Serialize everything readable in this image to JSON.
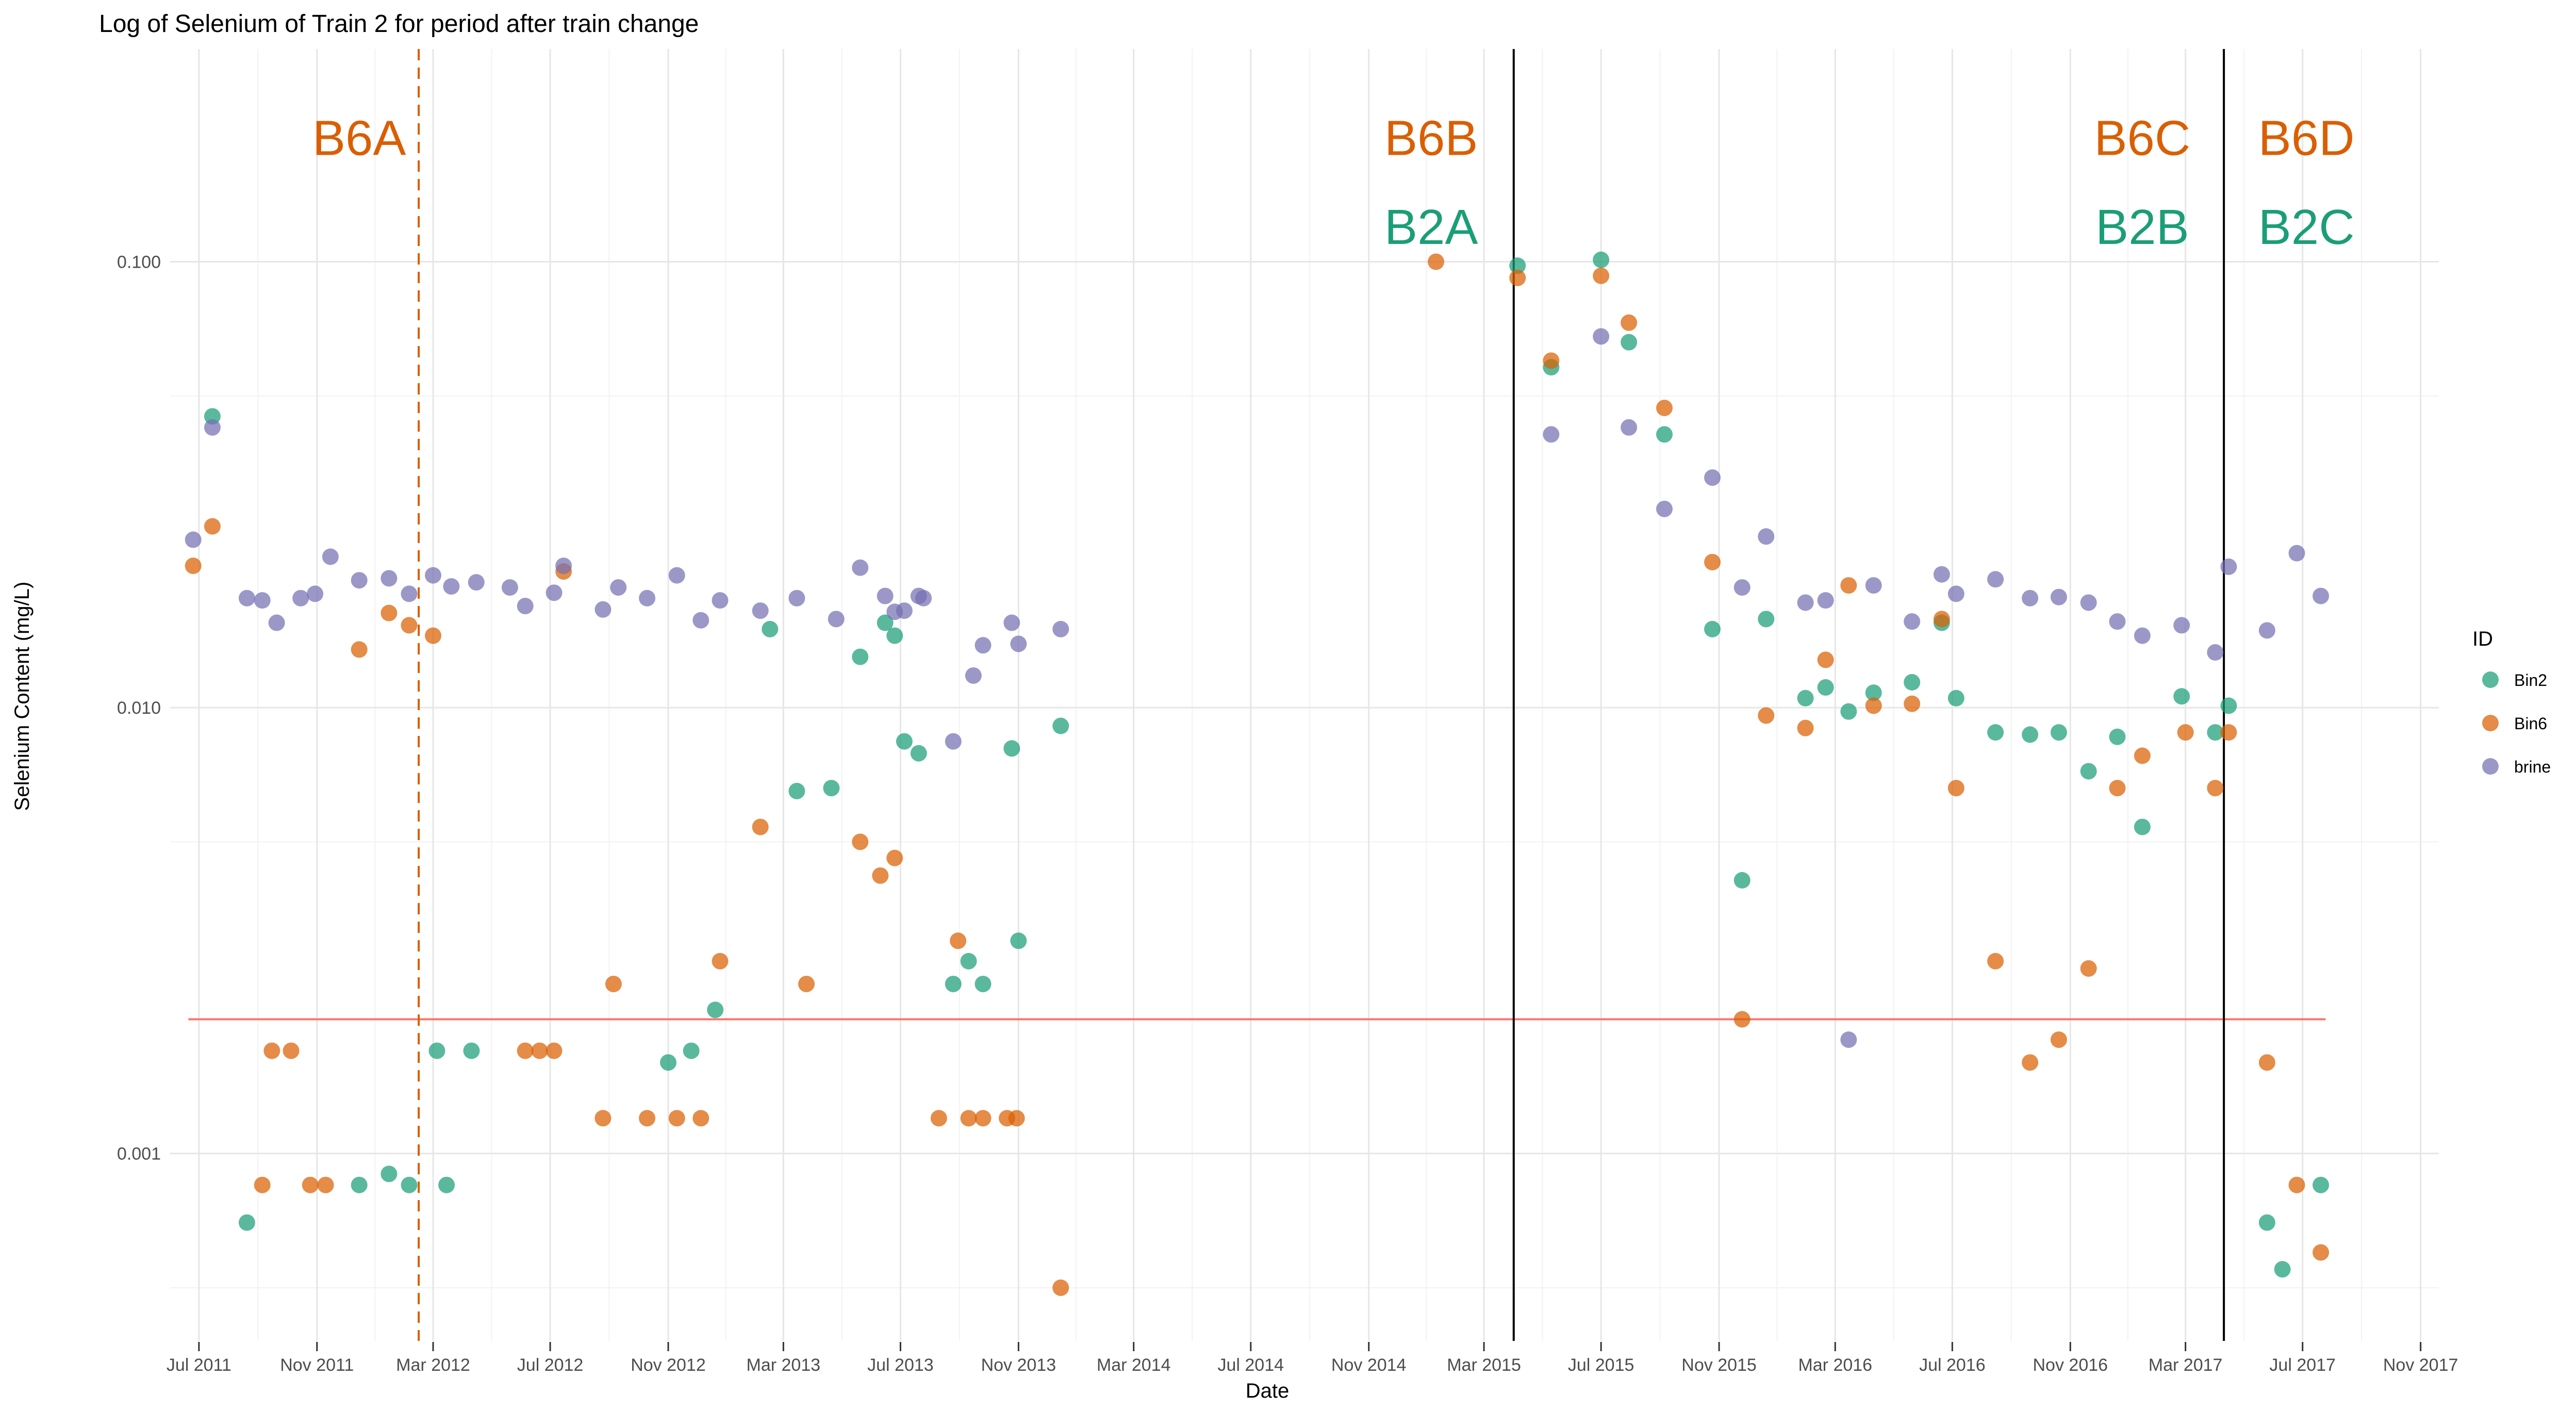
{
  "chart_data": {
    "type": "scatter",
    "title": "Log of Selenium of Train 2 for period after train change",
    "xlabel": "Date",
    "ylabel": "Selenium Content (mg/L)",
    "x_scale": "date",
    "y_scale": "log10",
    "xlim": [
      "2011-06-01",
      "2017-11-20"
    ],
    "ylim": [
      0.00038,
      0.3
    ],
    "x_ticks": [
      {
        "date": "2011-07-01",
        "label": "Jul 2011"
      },
      {
        "date": "2011-11-01",
        "label": "Nov 2011"
      },
      {
        "date": "2012-03-01",
        "label": "Mar 2012"
      },
      {
        "date": "2012-07-01",
        "label": "Jul 2012"
      },
      {
        "date": "2012-11-01",
        "label": "Nov 2012"
      },
      {
        "date": "2013-03-01",
        "label": "Mar 2013"
      },
      {
        "date": "2013-07-01",
        "label": "Jul 2013"
      },
      {
        "date": "2013-11-01",
        "label": "Nov 2013"
      },
      {
        "date": "2014-03-01",
        "label": "Mar 2014"
      },
      {
        "date": "2014-07-01",
        "label": "Jul 2014"
      },
      {
        "date": "2014-11-01",
        "label": "Nov 2014"
      },
      {
        "date": "2015-03-01",
        "label": "Mar 2015"
      },
      {
        "date": "2015-07-01",
        "label": "Jul 2015"
      },
      {
        "date": "2015-11-01",
        "label": "Nov 2015"
      },
      {
        "date": "2016-03-01",
        "label": "Mar 2016"
      },
      {
        "date": "2016-07-01",
        "label": "Jul 2016"
      },
      {
        "date": "2016-11-01",
        "label": "Nov 2016"
      },
      {
        "date": "2017-03-01",
        "label": "Mar 2017"
      },
      {
        "date": "2017-07-01",
        "label": "Jul 2017"
      },
      {
        "date": "2017-11-01",
        "label": "Nov 2017"
      }
    ],
    "y_ticks": [
      {
        "value": 0.001,
        "label": "0.001"
      },
      {
        "value": 0.01,
        "label": "0.010"
      },
      {
        "value": 0.1,
        "label": "0.100"
      }
    ],
    "grid": true,
    "legend": {
      "title": "ID",
      "position": "right"
    },
    "reference_lines": [
      {
        "orientation": "horizontal",
        "value": 0.002,
        "from": "2011-06-20",
        "to": "2017-07-25",
        "color": "#F8766D",
        "style": "solid"
      },
      {
        "orientation": "vertical",
        "date": "2012-02-15",
        "color": "#D95F02",
        "style": "dashed"
      },
      {
        "orientation": "vertical",
        "date": "2015-04-01",
        "color": "#000000",
        "style": "solid"
      },
      {
        "orientation": "vertical",
        "date": "2017-04-10",
        "color": "#000000",
        "style": "solid"
      }
    ],
    "annotations": [
      {
        "text": "B6A",
        "date": "2011-12-15",
        "value": 0.19,
        "color": "#D95F02"
      },
      {
        "text": "B6B",
        "date": "2015-01-05",
        "value": 0.19,
        "color": "#D95F02"
      },
      {
        "text": "B2A",
        "date": "2015-01-05",
        "value": 0.12,
        "color": "#1B9E77"
      },
      {
        "text": "B6C",
        "date": "2017-01-15",
        "value": 0.19,
        "color": "#D95F02"
      },
      {
        "text": "B2B",
        "date": "2017-01-15",
        "value": 0.12,
        "color": "#1B9E77"
      },
      {
        "text": "B6D",
        "date": "2017-07-05",
        "value": 0.19,
        "color": "#D95F02"
      },
      {
        "text": "B2C",
        "date": "2017-07-05",
        "value": 0.12,
        "color": "#1B9E77"
      }
    ],
    "series": [
      {
        "name": "Bin2",
        "color": "#1B9E77",
        "points": [
          {
            "x": "2011-07-15",
            "y": 0.045
          },
          {
            "x": "2011-08-20",
            "y": 0.0007
          },
          {
            "x": "2011-12-15",
            "y": 0.00085
          },
          {
            "x": "2012-01-15",
            "y": 0.0009
          },
          {
            "x": "2012-02-05",
            "y": 0.00085
          },
          {
            "x": "2012-03-05",
            "y": 0.0017
          },
          {
            "x": "2012-03-15",
            "y": 0.00085
          },
          {
            "x": "2012-04-10",
            "y": 0.0017
          },
          {
            "x": "2012-11-01",
            "y": 0.0016
          },
          {
            "x": "2012-11-25",
            "y": 0.0017
          },
          {
            "x": "2012-12-20",
            "y": 0.0021
          },
          {
            "x": "2013-02-15",
            "y": 0.015
          },
          {
            "x": "2013-03-15",
            "y": 0.0065
          },
          {
            "x": "2013-04-20",
            "y": 0.0066
          },
          {
            "x": "2013-05-20",
            "y": 0.013
          },
          {
            "x": "2013-06-15",
            "y": 0.0155
          },
          {
            "x": "2013-06-25",
            "y": 0.0145
          },
          {
            "x": "2013-07-05",
            "y": 0.0084
          },
          {
            "x": "2013-07-20",
            "y": 0.0079
          },
          {
            "x": "2013-08-25",
            "y": 0.0024
          },
          {
            "x": "2013-09-10",
            "y": 0.0027
          },
          {
            "x": "2013-09-25",
            "y": 0.0024
          },
          {
            "x": "2013-10-25",
            "y": 0.0081
          },
          {
            "x": "2013-11-01",
            "y": 0.003
          },
          {
            "x": "2013-12-15",
            "y": 0.0091
          },
          {
            "x": "2015-04-05",
            "y": 0.098
          },
          {
            "x": "2015-05-10",
            "y": 0.058
          },
          {
            "x": "2015-07-01",
            "y": 0.101
          },
          {
            "x": "2015-07-30",
            "y": 0.066
          },
          {
            "x": "2015-09-05",
            "y": 0.041
          },
          {
            "x": "2015-10-25",
            "y": 0.015
          },
          {
            "x": "2015-11-25",
            "y": 0.0041
          },
          {
            "x": "2015-12-20",
            "y": 0.0158
          },
          {
            "x": "2016-01-30",
            "y": 0.0105
          },
          {
            "x": "2016-02-20",
            "y": 0.0111
          },
          {
            "x": "2016-03-15",
            "y": 0.0098
          },
          {
            "x": "2016-04-10",
            "y": 0.0108
          },
          {
            "x": "2016-05-20",
            "y": 0.0114
          },
          {
            "x": "2016-06-20",
            "y": 0.0155
          },
          {
            "x": "2016-07-05",
            "y": 0.0105
          },
          {
            "x": "2016-08-15",
            "y": 0.0088
          },
          {
            "x": "2016-09-20",
            "y": 0.0087
          },
          {
            "x": "2016-10-20",
            "y": 0.0088
          },
          {
            "x": "2016-11-20",
            "y": 0.0072
          },
          {
            "x": "2016-12-20",
            "y": 0.0086
          },
          {
            "x": "2017-01-15",
            "y": 0.0054
          },
          {
            "x": "2017-02-25",
            "y": 0.0106
          },
          {
            "x": "2017-04-01",
            "y": 0.0088
          },
          {
            "x": "2017-04-15",
            "y": 0.0101
          },
          {
            "x": "2017-05-25",
            "y": 0.0007
          },
          {
            "x": "2017-06-10",
            "y": 0.00055
          },
          {
            "x": "2017-07-20",
            "y": 0.00085
          }
        ]
      },
      {
        "name": "Bin6",
        "color": "#D95F02",
        "points": [
          {
            "x": "2011-06-25",
            "y": 0.0208
          },
          {
            "x": "2011-07-15",
            "y": 0.0255
          },
          {
            "x": "2011-09-05",
            "y": 0.00085
          },
          {
            "x": "2011-09-15",
            "y": 0.0017
          },
          {
            "x": "2011-10-05",
            "y": 0.0017
          },
          {
            "x": "2011-10-25",
            "y": 0.00085
          },
          {
            "x": "2011-11-10",
            "y": 0.00085
          },
          {
            "x": "2011-12-15",
            "y": 0.0135
          },
          {
            "x": "2012-01-15",
            "y": 0.0163
          },
          {
            "x": "2012-02-05",
            "y": 0.0153
          },
          {
            "x": "2012-03-01",
            "y": 0.0145
          },
          {
            "x": "2012-06-05",
            "y": 0.0017
          },
          {
            "x": "2012-06-20",
            "y": 0.0017
          },
          {
            "x": "2012-07-05",
            "y": 0.0017
          },
          {
            "x": "2012-07-15",
            "y": 0.0202
          },
          {
            "x": "2012-08-25",
            "y": 0.0012
          },
          {
            "x": "2012-09-05",
            "y": 0.0024
          },
          {
            "x": "2012-10-10",
            "y": 0.0012
          },
          {
            "x": "2012-11-10",
            "y": 0.0012
          },
          {
            "x": "2012-12-05",
            "y": 0.0012
          },
          {
            "x": "2012-12-25",
            "y": 0.0027
          },
          {
            "x": "2013-02-05",
            "y": 0.0054
          },
          {
            "x": "2013-03-25",
            "y": 0.0024
          },
          {
            "x": "2013-05-20",
            "y": 0.005
          },
          {
            "x": "2013-06-10",
            "y": 0.0042
          },
          {
            "x": "2013-06-25",
            "y": 0.0046
          },
          {
            "x": "2013-08-10",
            "y": 0.0012
          },
          {
            "x": "2013-08-30",
            "y": 0.003
          },
          {
            "x": "2013-09-10",
            "y": 0.0012
          },
          {
            "x": "2013-09-25",
            "y": 0.0012
          },
          {
            "x": "2013-10-20",
            "y": 0.0012
          },
          {
            "x": "2013-10-30",
            "y": 0.0012
          },
          {
            "x": "2013-12-15",
            "y": 0.0005
          },
          {
            "x": "2015-01-10",
            "y": 0.1
          },
          {
            "x": "2015-04-05",
            "y": 0.092
          },
          {
            "x": "2015-05-10",
            "y": 0.06
          },
          {
            "x": "2015-07-01",
            "y": 0.093
          },
          {
            "x": "2015-07-30",
            "y": 0.073
          },
          {
            "x": "2015-09-05",
            "y": 0.047
          },
          {
            "x": "2015-10-25",
            "y": 0.0212
          },
          {
            "x": "2015-11-25",
            "y": 0.002
          },
          {
            "x": "2015-12-20",
            "y": 0.0096
          },
          {
            "x": "2016-01-30",
            "y": 0.009
          },
          {
            "x": "2016-02-20",
            "y": 0.0128
          },
          {
            "x": "2016-03-15",
            "y": 0.0188
          },
          {
            "x": "2016-04-10",
            "y": 0.0101
          },
          {
            "x": "2016-05-20",
            "y": 0.0102
          },
          {
            "x": "2016-06-20",
            "y": 0.0158
          },
          {
            "x": "2016-07-05",
            "y": 0.0066
          },
          {
            "x": "2016-08-15",
            "y": 0.0027
          },
          {
            "x": "2016-09-20",
            "y": 0.0016
          },
          {
            "x": "2016-10-20",
            "y": 0.0018
          },
          {
            "x": "2016-11-20",
            "y": 0.0026
          },
          {
            "x": "2016-12-20",
            "y": 0.0066
          },
          {
            "x": "2017-01-15",
            "y": 0.0078
          },
          {
            "x": "2017-03-01",
            "y": 0.0088
          },
          {
            "x": "2017-04-01",
            "y": 0.0066
          },
          {
            "x": "2017-04-15",
            "y": 0.0088
          },
          {
            "x": "2017-05-25",
            "y": 0.0016
          },
          {
            "x": "2017-06-25",
            "y": 0.00085
          },
          {
            "x": "2017-07-20",
            "y": 0.0006
          }
        ]
      },
      {
        "name": "brine",
        "color": "#7570B3",
        "points": [
          {
            "x": "2011-06-25",
            "y": 0.0238
          },
          {
            "x": "2011-07-15",
            "y": 0.0425
          },
          {
            "x": "2011-08-20",
            "y": 0.0176
          },
          {
            "x": "2011-09-05",
            "y": 0.0174
          },
          {
            "x": "2011-09-20",
            "y": 0.0155
          },
          {
            "x": "2011-10-15",
            "y": 0.0176
          },
          {
            "x": "2011-10-30",
            "y": 0.018
          },
          {
            "x": "2011-11-15",
            "y": 0.0218
          },
          {
            "x": "2011-12-15",
            "y": 0.0193
          },
          {
            "x": "2012-01-15",
            "y": 0.0195
          },
          {
            "x": "2012-02-05",
            "y": 0.018
          },
          {
            "x": "2012-03-01",
            "y": 0.0198
          },
          {
            "x": "2012-03-20",
            "y": 0.0187
          },
          {
            "x": "2012-04-15",
            "y": 0.0191
          },
          {
            "x": "2012-05-20",
            "y": 0.0186
          },
          {
            "x": "2012-06-05",
            "y": 0.0169
          },
          {
            "x": "2012-07-05",
            "y": 0.0181
          },
          {
            "x": "2012-07-15",
            "y": 0.0208
          },
          {
            "x": "2012-08-25",
            "y": 0.0166
          },
          {
            "x": "2012-09-10",
            "y": 0.0186
          },
          {
            "x": "2012-10-10",
            "y": 0.0176
          },
          {
            "x": "2012-11-10",
            "y": 0.0198
          },
          {
            "x": "2012-12-05",
            "y": 0.0157
          },
          {
            "x": "2012-12-25",
            "y": 0.0174
          },
          {
            "x": "2013-02-05",
            "y": 0.0165
          },
          {
            "x": "2013-03-15",
            "y": 0.0176
          },
          {
            "x": "2013-04-25",
            "y": 0.0158
          },
          {
            "x": "2013-05-20",
            "y": 0.0206
          },
          {
            "x": "2013-06-15",
            "y": 0.0178
          },
          {
            "x": "2013-06-25",
            "y": 0.0164
          },
          {
            "x": "2013-07-05",
            "y": 0.0165
          },
          {
            "x": "2013-07-20",
            "y": 0.0178
          },
          {
            "x": "2013-07-25",
            "y": 0.0176
          },
          {
            "x": "2013-08-25",
            "y": 0.0084
          },
          {
            "x": "2013-09-15",
            "y": 0.0118
          },
          {
            "x": "2013-09-25",
            "y": 0.0138
          },
          {
            "x": "2013-10-25",
            "y": 0.0155
          },
          {
            "x": "2013-11-01",
            "y": 0.0139
          },
          {
            "x": "2013-12-15",
            "y": 0.015
          },
          {
            "x": "2015-05-10",
            "y": 0.041
          },
          {
            "x": "2015-07-01",
            "y": 0.068
          },
          {
            "x": "2015-07-30",
            "y": 0.0425
          },
          {
            "x": "2015-09-05",
            "y": 0.0279
          },
          {
            "x": "2015-10-25",
            "y": 0.0328
          },
          {
            "x": "2015-11-25",
            "y": 0.0186
          },
          {
            "x": "2015-12-20",
            "y": 0.0242
          },
          {
            "x": "2016-01-30",
            "y": 0.0172
          },
          {
            "x": "2016-02-20",
            "y": 0.0174
          },
          {
            "x": "2016-03-15",
            "y": 0.0018
          },
          {
            "x": "2016-04-10",
            "y": 0.0188
          },
          {
            "x": "2016-05-20",
            "y": 0.0156
          },
          {
            "x": "2016-06-20",
            "y": 0.0199
          },
          {
            "x": "2016-07-05",
            "y": 0.018
          },
          {
            "x": "2016-08-15",
            "y": 0.0194
          },
          {
            "x": "2016-09-20",
            "y": 0.0176
          },
          {
            "x": "2016-10-20",
            "y": 0.0177
          },
          {
            "x": "2016-11-20",
            "y": 0.0172
          },
          {
            "x": "2016-12-20",
            "y": 0.0156
          },
          {
            "x": "2017-01-15",
            "y": 0.0145
          },
          {
            "x": "2017-02-25",
            "y": 0.0153
          },
          {
            "x": "2017-04-01",
            "y": 0.0133
          },
          {
            "x": "2017-04-15",
            "y": 0.0207
          },
          {
            "x": "2017-05-25",
            "y": 0.0149
          },
          {
            "x": "2017-06-25",
            "y": 0.0222
          },
          {
            "x": "2017-07-20",
            "y": 0.0178
          }
        ]
      }
    ]
  }
}
